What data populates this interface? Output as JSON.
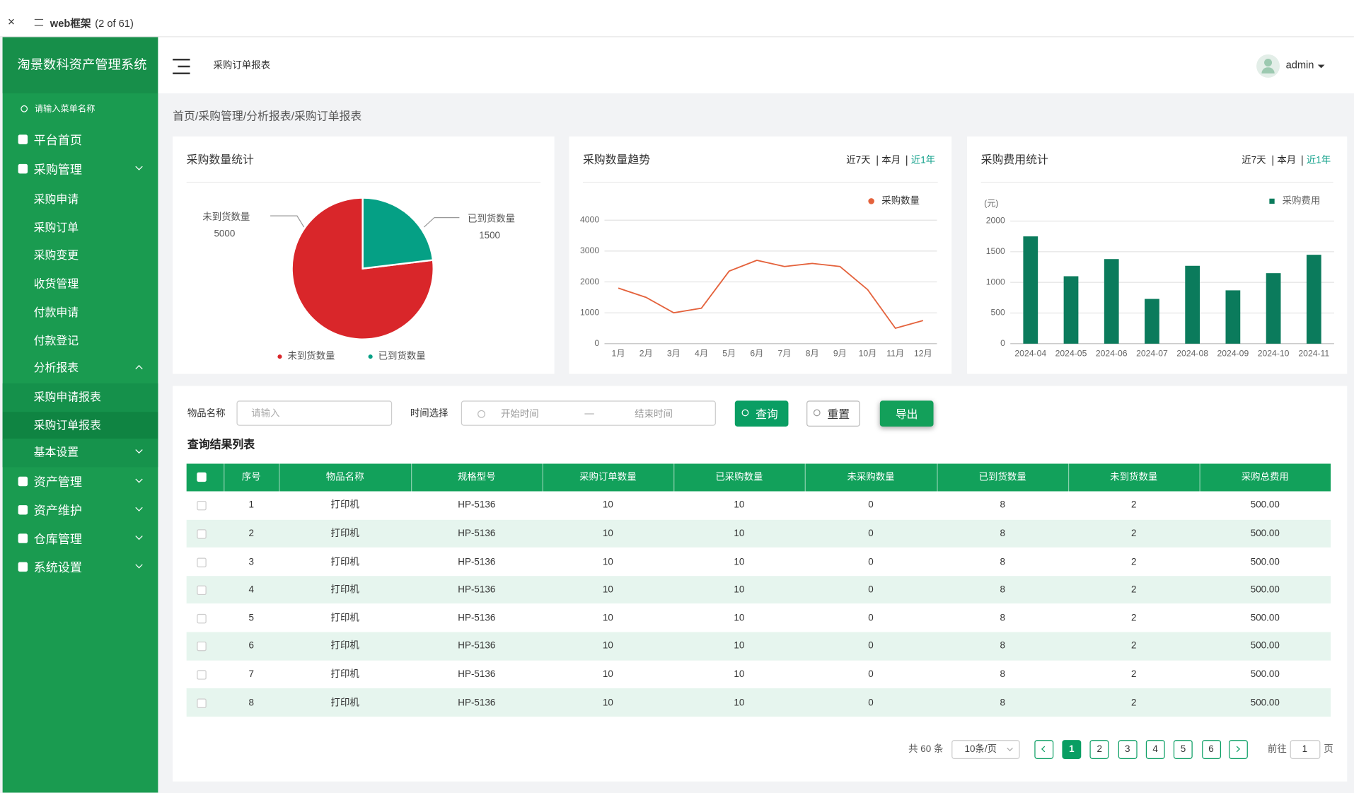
{
  "browser_tab": {
    "title": "web框架",
    "count": "(2 of 61)"
  },
  "sidebar": {
    "title": "淘景数科资产管理系统",
    "search_placeholder": "请输入菜单名称",
    "menu": [
      {
        "label": "平台首页"
      },
      {
        "label": "采购管理",
        "children": [
          {
            "label": "采购申请"
          },
          {
            "label": "采购订单"
          },
          {
            "label": "采购变更"
          },
          {
            "label": "收货管理"
          },
          {
            "label": "付款申请"
          },
          {
            "label": "付款登记"
          },
          {
            "label": "分析报表",
            "children": [
              {
                "label": "采购申请报表"
              },
              {
                "label": "采购订单报表"
              }
            ]
          },
          {
            "label": "基本设置"
          }
        ]
      },
      {
        "label": "资产管理"
      },
      {
        "label": "资产维护"
      },
      {
        "label": "仓库管理"
      },
      {
        "label": "系统设置"
      }
    ]
  },
  "header": {
    "page_title": "采购订单报表",
    "user": "admin"
  },
  "breadcrumb": "首页/采购管理/分析报表/采购订单报表",
  "chart_data": [
    {
      "type": "pie",
      "title": "采购数量统计",
      "categories": [
        "未到货数量",
        "已到货数量"
      ],
      "values": [
        5000,
        1500
      ],
      "colors": [
        "#d9262a",
        "#05a085"
      ]
    },
    {
      "type": "line",
      "title": "采购数量趋势",
      "range_options": [
        "近7天",
        "本月",
        "近1年"
      ],
      "categories": [
        "1月",
        "2月",
        "3月",
        "4月",
        "5月",
        "6月",
        "7月",
        "8月",
        "9月",
        "10月",
        "11月",
        "12月"
      ],
      "series": [
        {
          "name": "采购数量",
          "color": "#e4623c",
          "values": [
            1800,
            1500,
            1000,
            1150,
            2350,
            2700,
            2500,
            2600,
            2500,
            1750,
            500,
            750
          ]
        }
      ],
      "ylim": [
        0,
        4000
      ],
      "yticks": [
        0,
        1000,
        2000,
        3000,
        4000
      ],
      "grid": true
    },
    {
      "type": "bar",
      "title": "采购费用统计",
      "range_options": [
        "近7天",
        "本月",
        "近1年"
      ],
      "y_label": "(元)",
      "categories": [
        "2024-04",
        "2024-05",
        "2024-06",
        "2024-07",
        "2024-08",
        "2024-09",
        "2024-10",
        "2024-11"
      ],
      "series": [
        {
          "name": "采购费用",
          "color": "#0b7b5c",
          "values": [
            1750,
            1100,
            1380,
            730,
            1270,
            870,
            1150,
            1450
          ]
        }
      ],
      "ylim": [
        0,
        2000
      ],
      "yticks": [
        0,
        500,
        1000,
        1500,
        2000
      ],
      "grid": true
    }
  ],
  "filters": {
    "item_label": "物品名称",
    "item_placeholder": "请输入",
    "time_label": "时间选择",
    "start_placeholder": "开始时间",
    "separator": "—",
    "end_placeholder": "结束时间",
    "buttons": [
      "查询",
      "重置",
      "导出"
    ]
  },
  "table": {
    "title": "查询结果列表",
    "columns": [
      "序号",
      "物品名称",
      "规格型号",
      "采购订单数量",
      "已采购数量",
      "未采购数量",
      "已到货数量",
      "未到货数量",
      "采购总费用"
    ],
    "rows": [
      [
        1,
        "打印机",
        "HP-5136",
        10,
        10,
        0,
        8,
        2,
        "500.00"
      ],
      [
        2,
        "打印机",
        "HP-5136",
        10,
        10,
        0,
        8,
        2,
        "500.00"
      ],
      [
        3,
        "打印机",
        "HP-5136",
        10,
        10,
        0,
        8,
        2,
        "500.00"
      ],
      [
        4,
        "打印机",
        "HP-5136",
        10,
        10,
        0,
        8,
        2,
        "500.00"
      ],
      [
        5,
        "打印机",
        "HP-5136",
        10,
        10,
        0,
        8,
        2,
        "500.00"
      ],
      [
        6,
        "打印机",
        "HP-5136",
        10,
        10,
        0,
        8,
        2,
        "500.00"
      ],
      [
        7,
        "打印机",
        "HP-5136",
        10,
        10,
        0,
        8,
        2,
        "500.00"
      ],
      [
        8,
        "打印机",
        "HP-5136",
        10,
        10,
        0,
        8,
        2,
        "500.00"
      ]
    ]
  },
  "pagination": {
    "total": "共 60 条",
    "page_size": "10条/页",
    "pages": [
      1,
      2,
      3,
      4,
      5,
      6
    ],
    "goto_label": "前往",
    "goto_value": "1",
    "goto_suffix": "页"
  }
}
